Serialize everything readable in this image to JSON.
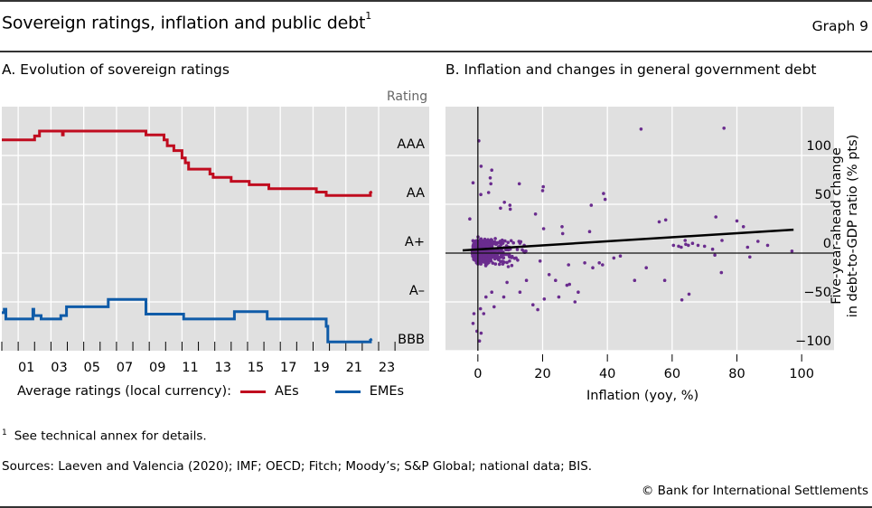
{
  "header": {
    "title": "Sovereign ratings, inflation and public debt",
    "title_footnote_ref": "1",
    "graph_number": "Graph 9"
  },
  "colors": {
    "aes": "#c00c1f",
    "emes": "#0f5ba8",
    "scatter": "#6a2c8e",
    "plot_bg": "#e0e0e0",
    "grid": "#ffffff",
    "axis": "#000000"
  },
  "legend": {
    "prefix": "Average ratings (local currency):",
    "items": [
      {
        "label": "AEs",
        "color": "#c00c1f"
      },
      {
        "label": "EMEs",
        "color": "#0f5ba8"
      }
    ]
  },
  "footnote": {
    "ref": "1",
    "text": "See technical annex for details."
  },
  "sources": "Sources: Laeven and Valencia (2020); IMF; OECD; Fitch; Moody’s; S&P Global; national data; BIS.",
  "copyright": "© Bank for International Settlements",
  "chart_data": [
    {
      "type": "line",
      "panel": "A",
      "title": "A. Evolution of sovereign ratings",
      "ylabel": "Rating",
      "xlabel": "",
      "x_range": [
        2000,
        2024
      ],
      "x_tick_labels": [
        "01",
        "03",
        "05",
        "07",
        "09",
        "11",
        "13",
        "15",
        "17",
        "19",
        "21",
        "23"
      ],
      "y_scale_note": "rating notches; 0 = bottom of BBB band, 5 = top of AAA band",
      "ylim": [
        0,
        5
      ],
      "y_tick_labels": [
        "AAA",
        "AA",
        "A+",
        "A–",
        "BBB"
      ],
      "y_tick_values": [
        4.2,
        3.2,
        2.2,
        1.2,
        0.2
      ],
      "grid": true,
      "legend_position": "bottom",
      "series": [
        {
          "name": "AEs",
          "color": "#c00c1f",
          "step_points": [
            [
              2000.0,
              4.32
            ],
            [
              2002.0,
              4.32
            ],
            [
              2002.0,
              4.4
            ],
            [
              2002.3,
              4.4
            ],
            [
              2002.3,
              4.5
            ],
            [
              2003.7,
              4.5
            ],
            [
              2003.7,
              4.42
            ],
            [
              2003.75,
              4.42
            ],
            [
              2003.75,
              4.5
            ],
            [
              2008.8,
              4.5
            ],
            [
              2008.8,
              4.42
            ],
            [
              2009.9,
              4.42
            ],
            [
              2009.9,
              4.32
            ],
            [
              2010.1,
              4.32
            ],
            [
              2010.1,
              4.2
            ],
            [
              2010.5,
              4.2
            ],
            [
              2010.5,
              4.1
            ],
            [
              2011.0,
              4.1
            ],
            [
              2011.0,
              3.95
            ],
            [
              2011.2,
              3.95
            ],
            [
              2011.2,
              3.85
            ],
            [
              2011.4,
              3.85
            ],
            [
              2011.4,
              3.72
            ],
            [
              2012.7,
              3.72
            ],
            [
              2012.7,
              3.62
            ],
            [
              2012.9,
              3.62
            ],
            [
              2012.9,
              3.55
            ],
            [
              2014.0,
              3.55
            ],
            [
              2014.0,
              3.47
            ],
            [
              2015.1,
              3.47
            ],
            [
              2015.1,
              3.4
            ],
            [
              2016.3,
              3.4
            ],
            [
              2016.3,
              3.32
            ],
            [
              2019.2,
              3.32
            ],
            [
              2019.2,
              3.25
            ],
            [
              2019.8,
              3.25
            ],
            [
              2019.8,
              3.18
            ],
            [
              2022.5,
              3.18
            ],
            [
              2022.5,
              3.24
            ],
            [
              2022.6,
              3.26
            ]
          ]
        },
        {
          "name": "EMEs",
          "color": "#0f5ba8",
          "step_points": [
            [
              2000.0,
              0.78
            ],
            [
              2000.15,
              0.78
            ],
            [
              2000.15,
              0.85
            ],
            [
              2000.25,
              0.85
            ],
            [
              2000.25,
              0.65
            ],
            [
              2001.9,
              0.65
            ],
            [
              2001.9,
              0.85
            ],
            [
              2001.95,
              0.85
            ],
            [
              2001.95,
              0.72
            ],
            [
              2002.4,
              0.72
            ],
            [
              2002.4,
              0.65
            ],
            [
              2003.6,
              0.65
            ],
            [
              2003.6,
              0.72
            ],
            [
              2003.95,
              0.72
            ],
            [
              2003.95,
              0.9
            ],
            [
              2006.5,
              0.9
            ],
            [
              2006.5,
              1.05
            ],
            [
              2008.8,
              1.05
            ],
            [
              2008.8,
              0.75
            ],
            [
              2011.1,
              0.75
            ],
            [
              2011.1,
              0.65
            ],
            [
              2014.2,
              0.65
            ],
            [
              2014.2,
              0.8
            ],
            [
              2016.2,
              0.8
            ],
            [
              2016.2,
              0.65
            ],
            [
              2019.8,
              0.65
            ],
            [
              2019.8,
              0.5
            ],
            [
              2019.9,
              0.5
            ],
            [
              2019.9,
              0.18
            ],
            [
              2022.5,
              0.18
            ],
            [
              2022.5,
              0.22
            ],
            [
              2022.6,
              0.24
            ]
          ]
        }
      ]
    },
    {
      "type": "scatter",
      "panel": "B",
      "title": "B. Inflation and changes in general government debt",
      "xlabel": "Inflation (yoy, %)",
      "ylabel": "Five-year-ahead change in debt-to-GDP ratio (% pts)",
      "xlim": [
        -10,
        110
      ],
      "ylim": [
        -100,
        150
      ],
      "x_ticks": [
        0,
        20,
        40,
        60,
        80,
        100
      ],
      "y_ticks": [
        100,
        50,
        0,
        -50,
        -100
      ],
      "grid": true,
      "reference_lines": {
        "x": 0,
        "y": 0
      },
      "regression_line": {
        "x": [
          -4.7,
          97.5
        ],
        "y": [
          2.8,
          24
        ]
      },
      "dense_cluster": {
        "x_center": 3,
        "y_center": 0,
        "approx_count": 1800,
        "note": "dense mass of points around 0–15% inflation and −40 to +40 pts"
      },
      "outliers": [
        [
          50.4,
          127
        ],
        [
          76,
          128
        ],
        [
          0.3,
          115
        ],
        [
          1,
          89
        ],
        [
          4.3,
          85
        ],
        [
          3.8,
          77
        ],
        [
          -1.5,
          72
        ],
        [
          4,
          71
        ],
        [
          12.8,
          71
        ],
        [
          20.2,
          68
        ],
        [
          20,
          64
        ],
        [
          38.8,
          61
        ],
        [
          39.3,
          55
        ],
        [
          35,
          49
        ],
        [
          3.3,
          62
        ],
        [
          0.9,
          60
        ],
        [
          8.2,
          52
        ],
        [
          9.9,
          49
        ],
        [
          10,
          45
        ],
        [
          7,
          46
        ],
        [
          17.8,
          40
        ],
        [
          -2.5,
          35
        ],
        [
          26,
          27
        ],
        [
          26.2,
          20
        ],
        [
          20.3,
          25
        ],
        [
          34.5,
          22
        ],
        [
          56,
          32
        ],
        [
          58,
          34
        ],
        [
          73.5,
          37
        ],
        [
          80,
          33
        ],
        [
          82,
          27
        ],
        [
          64,
          13
        ],
        [
          66.3,
          10
        ],
        [
          68,
          8
        ],
        [
          70,
          7
        ],
        [
          60.4,
          8
        ],
        [
          62,
          7
        ],
        [
          62.8,
          6
        ],
        [
          64.2,
          9
        ],
        [
          65,
          8
        ],
        [
          72.5,
          4
        ],
        [
          83.3,
          6
        ],
        [
          89.5,
          8
        ],
        [
          97,
          2
        ],
        [
          75.4,
          13
        ],
        [
          86.5,
          12
        ],
        [
          73.2,
          -2
        ],
        [
          84,
          -4
        ],
        [
          75.2,
          -20
        ],
        [
          57.7,
          -28
        ],
        [
          63,
          -48
        ],
        [
          65.2,
          -42
        ],
        [
          42,
          -5
        ],
        [
          44,
          -3
        ],
        [
          48.4,
          -28
        ],
        [
          52,
          -15
        ],
        [
          28,
          -12
        ],
        [
          27.5,
          -33
        ],
        [
          31,
          -40
        ],
        [
          33,
          -10
        ],
        [
          35.5,
          -15
        ],
        [
          37.5,
          -10
        ],
        [
          38.5,
          -12
        ],
        [
          17,
          -53
        ],
        [
          18.5,
          -58
        ],
        [
          20.5,
          -47
        ],
        [
          25,
          -45
        ],
        [
          28.3,
          -32
        ],
        [
          30,
          -50
        ],
        [
          24,
          -28
        ],
        [
          22,
          -22
        ],
        [
          15,
          -28
        ],
        [
          13,
          -40
        ],
        [
          -1.2,
          -62
        ],
        [
          -1.5,
          -72
        ],
        [
          0.5,
          -90
        ],
        [
          -0.3,
          -80
        ],
        [
          1,
          -82
        ],
        [
          1.8,
          -62
        ],
        [
          0.8,
          -57
        ],
        [
          4.3,
          -40
        ],
        [
          5,
          -55
        ],
        [
          2.5,
          -45
        ],
        [
          8,
          -45
        ],
        [
          9,
          -30
        ]
      ]
    }
  ]
}
